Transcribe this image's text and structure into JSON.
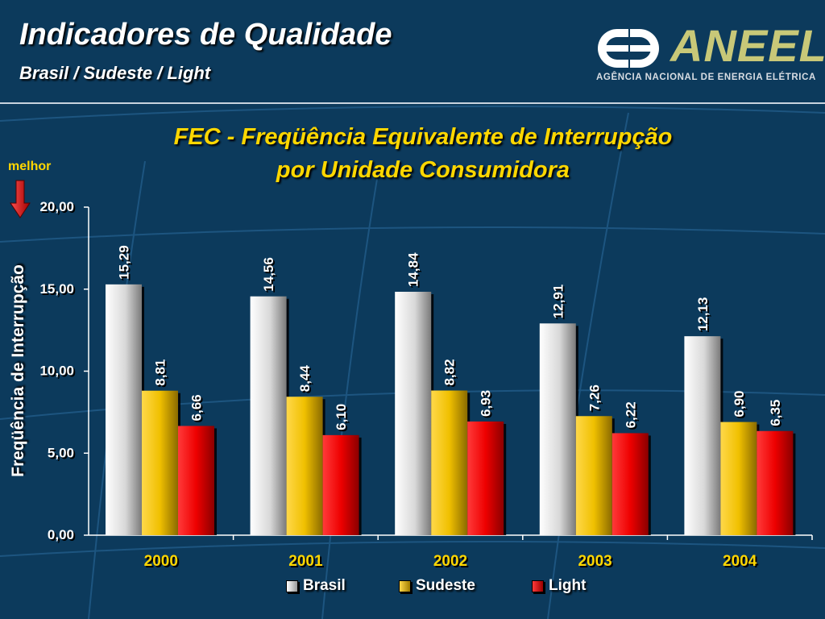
{
  "header": {
    "title": "Indicadores de Qualidade",
    "subtitle": "Brasil / Sudeste / Light"
  },
  "logo": {
    "name": "ANEEL",
    "tagline": "Agência Nacional de Energia Elétrica"
  },
  "annotation": {
    "better_label": "melhor",
    "better_arrow_icon": "arrow-down-icon"
  },
  "colors": {
    "background": "#0c3a5c",
    "title": "#ffd700",
    "brasil": "#e8e8e8",
    "sudeste": "#f0c000",
    "light": "#ee0000"
  },
  "chart_data": {
    "type": "bar",
    "title_line1": "FEC - Freqüência Equivalente de Interrupção",
    "title_line2": "por Unidade Consumidora",
    "xlabel": "",
    "ylabel": "Freqüência de Interrupção",
    "ylim": [
      0,
      20
    ],
    "yticks": [
      "0,00",
      "5,00",
      "10,00",
      "15,00",
      "20,00"
    ],
    "categories": [
      "2000",
      "2001",
      "2002",
      "2003",
      "2004"
    ],
    "legend_position": "bottom",
    "grid": false,
    "series": [
      {
        "name": "Brasil",
        "values": [
          15.29,
          14.56,
          14.84,
          12.91,
          12.13
        ],
        "labels": [
          "15,29",
          "14,56",
          "14,84",
          "12,91",
          "12,13"
        ]
      },
      {
        "name": "Sudeste",
        "values": [
          8.81,
          8.44,
          8.82,
          7.26,
          6.9
        ],
        "labels": [
          "8,81",
          "8,44",
          "8,82",
          "7,26",
          "6,90"
        ]
      },
      {
        "name": "Light",
        "values": [
          6.66,
          6.1,
          6.93,
          6.22,
          6.35
        ],
        "labels": [
          "6,66",
          "6,10",
          "6,93",
          "6,22",
          "6,35"
        ]
      }
    ]
  }
}
